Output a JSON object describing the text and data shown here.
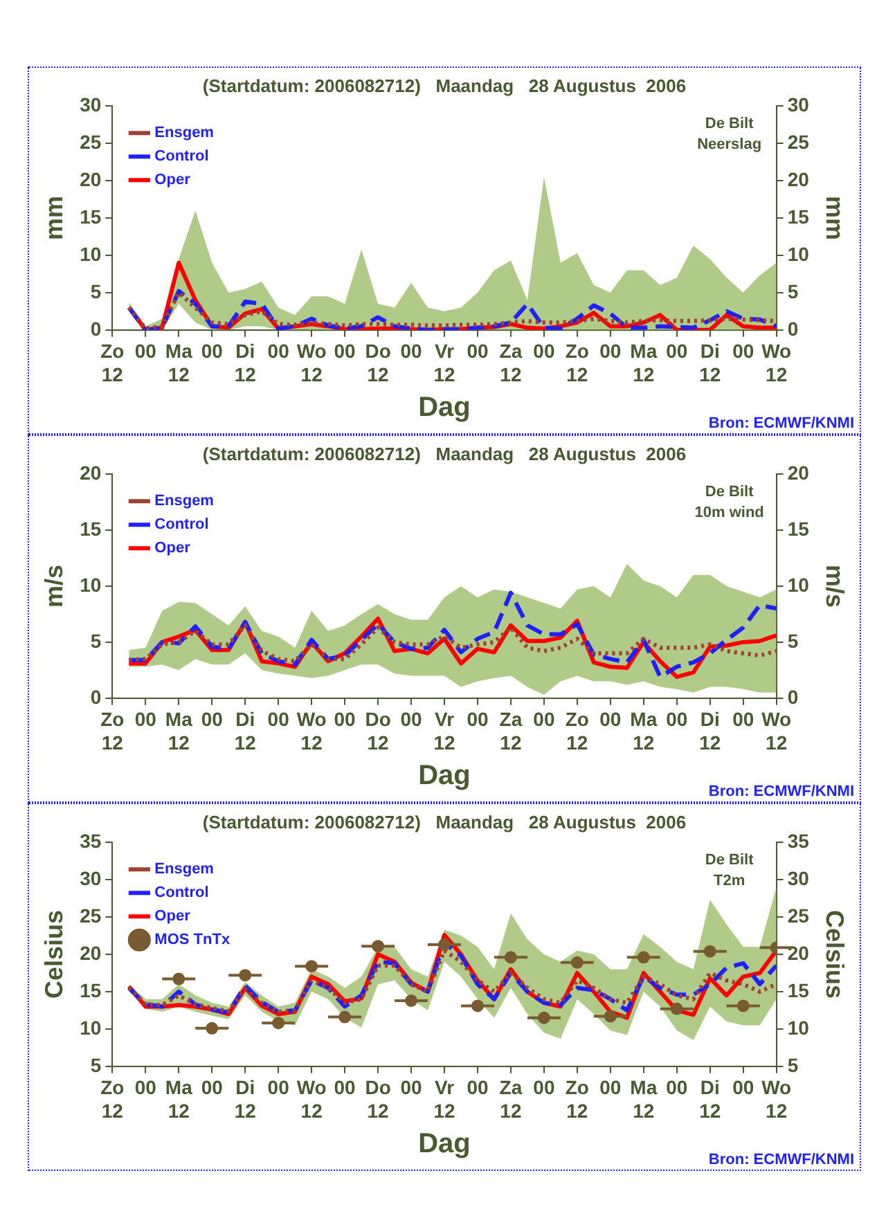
{
  "chart_data": [
    {
      "type": "line",
      "title": "(Startdatum: 2006082712)   Maandag   28 Augustus  2006",
      "xlabel": "Dag",
      "ylabel": "mm",
      "y2label": "mm",
      "x": [
        "2006-08-27T18:00",
        "2006-08-28T00:00",
        "2006-08-28T06:00",
        "2006-08-28T12:00",
        "2006-08-28T18:00",
        "2006-08-29T00:00",
        "2006-08-29T06:00",
        "2006-08-29T12:00",
        "2006-08-29T18:00",
        "2006-08-30T00:00",
        "2006-08-30T06:00",
        "2006-08-30T12:00",
        "2006-08-30T18:00",
        "2006-08-31T00:00",
        "2006-08-31T06:00",
        "2006-08-31T12:00",
        "2006-08-31T18:00",
        "2006-09-01T00:00",
        "2006-09-01T06:00",
        "2006-09-01T12:00",
        "2006-09-01T18:00",
        "2006-09-02T00:00",
        "2006-09-02T06:00",
        "2006-09-02T12:00",
        "2006-09-02T18:00",
        "2006-09-03T00:00",
        "2006-09-03T06:00",
        "2006-09-03T12:00",
        "2006-09-03T18:00",
        "2006-09-04T00:00",
        "2006-09-04T06:00",
        "2006-09-04T12:00",
        "2006-09-04T18:00",
        "2006-09-05T00:00",
        "2006-09-05T06:00",
        "2006-09-05T12:00",
        "2006-09-05T18:00",
        "2006-09-06T00:00",
        "2006-09-06T06:00",
        "2006-09-06T12:00"
      ],
      "xlim": [
        "2006-08-27T12:00",
        "2006-09-06T12:00"
      ],
      "xticks": [
        {
          "value": "2006-08-27T12:00",
          "label": "Zo\n12"
        },
        {
          "value": "2006-08-28T00:00",
          "label": "00"
        },
        {
          "value": "2006-08-28T12:00",
          "label": "Ma\n12"
        },
        {
          "value": "2006-08-29T00:00",
          "label": "00"
        },
        {
          "value": "2006-08-29T12:00",
          "label": "Di\n12"
        },
        {
          "value": "2006-08-30T00:00",
          "label": "00"
        },
        {
          "value": "2006-08-30T12:00",
          "label": "Wo\n12"
        },
        {
          "value": "2006-08-31T00:00",
          "label": "00"
        },
        {
          "value": "2006-08-31T12:00",
          "label": "Do\n12"
        },
        {
          "value": "2006-09-01T00:00",
          "label": "00"
        },
        {
          "value": "2006-09-01T12:00",
          "label": "Vr\n12"
        },
        {
          "value": "2006-09-02T00:00",
          "label": "00"
        },
        {
          "value": "2006-09-02T12:00",
          "label": "Za\n12"
        },
        {
          "value": "2006-09-03T00:00",
          "label": "00"
        },
        {
          "value": "2006-09-03T12:00",
          "label": "Zo\n12"
        },
        {
          "value": "2006-09-04T00:00",
          "label": "00"
        },
        {
          "value": "2006-09-04T12:00",
          "label": "Ma\n12"
        },
        {
          "value": "2006-09-05T00:00",
          "label": "00"
        },
        {
          "value": "2006-09-05T12:00",
          "label": "Di\n12"
        },
        {
          "value": "2006-09-06T00:00",
          "label": "00"
        },
        {
          "value": "2006-09-06T12:00",
          "label": "Wo\n12"
        }
      ],
      "ylim": [
        0,
        30
      ],
      "yticks": [
        0,
        5,
        10,
        15,
        20,
        25,
        30
      ],
      "y2lim": [
        0,
        30
      ],
      "y2ticks": [
        0,
        5,
        10,
        15,
        20,
        25,
        30
      ],
      "legend": "top left",
      "annotations": [
        "De Bilt",
        "Neerslag",
        "Bron: ECMWF/KNMI"
      ],
      "series": [
        {
          "color": "#9cbe6a",
          "values": [
            null,
            null,
            null,
            null,
            null,
            null,
            null,
            null,
            null,
            null,
            null,
            null,
            null,
            null,
            null,
            null,
            null,
            null,
            null,
            null,
            null,
            null,
            null,
            null,
            null,
            null,
            null,
            null,
            null,
            null,
            null,
            null,
            null,
            null,
            null,
            null,
            null,
            null,
            null,
            null
          ],
          "lower": [
            2.5,
            0,
            0,
            3.5,
            1,
            0,
            0,
            0.5,
            0.5,
            0,
            0,
            0,
            0,
            0,
            0,
            0,
            0,
            0,
            0,
            0,
            0,
            0,
            0,
            0,
            0,
            0,
            0,
            0,
            0,
            0,
            0,
            0,
            0,
            0,
            0,
            0,
            0,
            0,
            0,
            0
          ],
          "upper": [
            3.7,
            0.5,
            1.5,
            9.5,
            16,
            9,
            5,
            5.5,
            6.5,
            3,
            2,
            4.5,
            4.5,
            3.5,
            10.8,
            3.5,
            3,
            6.3,
            3,
            2.5,
            3,
            5,
            8,
            9.3,
            4,
            20.5,
            9,
            10.3,
            6,
            5,
            8,
            8,
            6,
            7,
            11.3,
            9.5,
            7,
            5,
            7.3,
            9
          ]
        },
        {
          "name": "Ensgem",
          "color": "#a04030",
          "line_style": "dotted",
          "values": [
            3,
            0.2,
            0.5,
            5,
            3,
            1,
            0.8,
            2,
            2.5,
            0.8,
            0.7,
            1,
            0.8,
            0.6,
            0.8,
            0.8,
            0.7,
            0.7,
            0.6,
            0.6,
            0.7,
            0.7,
            0.8,
            1,
            1.2,
            1,
            1,
            1.2,
            1.5,
            1.2,
            1,
            1.2,
            1.3,
            1.2,
            1.2,
            1.3,
            1.5,
            1.4,
            1.3,
            1.2
          ]
        },
        {
          "name": "Control",
          "color": "#2020ff",
          "line_style": "dashed",
          "values": [
            3,
            0,
            0.3,
            5.2,
            3.5,
            0.5,
            0.5,
            3.8,
            3.5,
            0.2,
            0.5,
            1.5,
            0.6,
            0.2,
            0.5,
            1.7,
            0.5,
            0.2,
            0,
            0.1,
            0.1,
            0.3,
            0.5,
            1,
            3.5,
            0.3,
            0.2,
            1.5,
            3.3,
            2.2,
            0.3,
            0.3,
            0.5,
            0.4,
            0.3,
            1.3,
            2.5,
            1.5,
            1.4,
            0.5
          ]
        },
        {
          "name": "Oper",
          "color": "#ff0000",
          "line_style": "solid",
          "values": [
            3,
            0,
            0.3,
            9,
            4,
            0.5,
            0.3,
            2.2,
            2.8,
            0.2,
            0.5,
            0.8,
            0.5,
            0.1,
            0.1,
            0.2,
            0.2,
            0.1,
            0,
            0.1,
            0.1,
            0.3,
            0.4,
            0.8,
            0.3,
            0.2,
            0.5,
            1,
            2.3,
            0.5,
            0.5,
            1,
            2,
            0,
            0,
            0,
            2,
            0.5,
            0.3,
            0.3
          ]
        }
      ]
    },
    {
      "type": "line",
      "title": "(Startdatum: 2006082712)   Maandag   28 Augustus  2006",
      "xlabel": "Dag",
      "ylabel": "m/s",
      "y2label": "m/s",
      "x": [
        "2006-08-27T18:00",
        "2006-08-28T00:00",
        "2006-08-28T06:00",
        "2006-08-28T12:00",
        "2006-08-28T18:00",
        "2006-08-29T00:00",
        "2006-08-29T06:00",
        "2006-08-29T12:00",
        "2006-08-29T18:00",
        "2006-08-30T00:00",
        "2006-08-30T06:00",
        "2006-08-30T12:00",
        "2006-08-30T18:00",
        "2006-08-31T00:00",
        "2006-08-31T06:00",
        "2006-08-31T12:00",
        "2006-08-31T18:00",
        "2006-09-01T00:00",
        "2006-09-01T06:00",
        "2006-09-01T12:00",
        "2006-09-01T18:00",
        "2006-09-02T00:00",
        "2006-09-02T06:00",
        "2006-09-02T12:00",
        "2006-09-02T18:00",
        "2006-09-03T00:00",
        "2006-09-03T06:00",
        "2006-09-03T12:00",
        "2006-09-03T18:00",
        "2006-09-04T00:00",
        "2006-09-04T06:00",
        "2006-09-04T12:00",
        "2006-09-04T18:00",
        "2006-09-05T00:00",
        "2006-09-05T06:00",
        "2006-09-05T12:00",
        "2006-09-05T18:00",
        "2006-09-06T00:00",
        "2006-09-06T06:00",
        "2006-09-06T12:00"
      ],
      "xlim": [
        "2006-08-27T12:00",
        "2006-09-06T12:00"
      ],
      "xticks": [
        {
          "value": "2006-08-27T12:00",
          "label": "Zo\n12"
        },
        {
          "value": "2006-08-28T00:00",
          "label": "00"
        },
        {
          "value": "2006-08-28T12:00",
          "label": "Ma\n12"
        },
        {
          "value": "2006-08-29T00:00",
          "label": "00"
        },
        {
          "value": "2006-08-29T12:00",
          "label": "Di\n12"
        },
        {
          "value": "2006-08-30T00:00",
          "label": "00"
        },
        {
          "value": "2006-08-30T12:00",
          "label": "Wo\n12"
        },
        {
          "value": "2006-08-31T00:00",
          "label": "00"
        },
        {
          "value": "2006-08-31T12:00",
          "label": "Do\n12"
        },
        {
          "value": "2006-09-01T00:00",
          "label": "00"
        },
        {
          "value": "2006-09-01T12:00",
          "label": "Vr\n12"
        },
        {
          "value": "2006-09-02T00:00",
          "label": "00"
        },
        {
          "value": "2006-09-02T12:00",
          "label": "Za\n12"
        },
        {
          "value": "2006-09-03T00:00",
          "label": "00"
        },
        {
          "value": "2006-09-03T12:00",
          "label": "Zo\n12"
        },
        {
          "value": "2006-09-04T00:00",
          "label": "00"
        },
        {
          "value": "2006-09-04T12:00",
          "label": "Ma\n12"
        },
        {
          "value": "2006-09-05T00:00",
          "label": "00"
        },
        {
          "value": "2006-09-05T12:00",
          "label": "Di\n12"
        },
        {
          "value": "2006-09-06T00:00",
          "label": "00"
        },
        {
          "value": "2006-09-06T12:00",
          "label": "Wo\n12"
        }
      ],
      "ylim": [
        0,
        20
      ],
      "yticks": [
        0,
        5,
        10,
        15,
        20
      ],
      "y2lim": [
        0,
        20
      ],
      "y2ticks": [
        0,
        5,
        10,
        15,
        20
      ],
      "legend": "top left",
      "annotations": [
        "De Bilt",
        "10m wind",
        "Bron: ECMWF/KNMI"
      ],
      "series": [
        {
          "color": "#9cbe6a",
          "values": [
            null,
            null,
            null,
            null,
            null,
            null,
            null,
            null,
            null,
            null,
            null,
            null,
            null,
            null,
            null,
            null,
            null,
            null,
            null,
            null,
            null,
            null,
            null,
            null,
            null,
            null,
            null,
            null,
            null,
            null,
            null,
            null,
            null,
            null,
            null,
            null,
            null,
            null,
            null,
            null
          ],
          "lower": [
            2.8,
            2.8,
            3,
            2.5,
            3.5,
            3,
            3,
            4,
            2.5,
            2.2,
            2,
            1.8,
            2,
            2.5,
            3,
            3,
            2.2,
            2,
            2,
            2,
            1,
            1.5,
            1.8,
            2,
            1,
            0.3,
            1.5,
            2,
            1.5,
            1.5,
            1.2,
            1.5,
            1,
            0.8,
            0.5,
            1,
            1,
            0.8,
            0.5,
            0.5
          ],
          "upper": [
            4.3,
            4.5,
            7.8,
            8.6,
            8.5,
            7.5,
            6.5,
            8.2,
            6,
            5.5,
            4.5,
            7.8,
            6,
            6.5,
            7.5,
            8.4,
            7.5,
            7,
            7,
            9,
            10,
            9,
            9.7,
            9.5,
            9,
            8.5,
            8,
            9.7,
            10,
            9,
            12,
            10.5,
            10,
            9,
            11,
            11,
            10,
            9.5,
            9,
            9.7
          ]
        },
        {
          "name": "Ensgem",
          "color": "#a04030",
          "line_style": "dotted",
          "values": [
            3.4,
            3.5,
            4.8,
            5,
            6,
            4.8,
            4.8,
            6.5,
            4.2,
            3.5,
            3.3,
            4.8,
            3.5,
            3.5,
            4.8,
            6.3,
            5,
            4.8,
            4.8,
            5.5,
            4.5,
            4.8,
            5,
            6.3,
            4.5,
            4.2,
            4.5,
            5.3,
            4,
            4,
            4,
            5.3,
            4.5,
            4.5,
            4.5,
            4.8,
            4.2,
            4,
            3.8,
            4.2
          ]
        },
        {
          "name": "Control",
          "color": "#2020ff",
          "line_style": "dashed",
          "values": [
            3.4,
            3.4,
            5,
            4.9,
            6.4,
            4.6,
            4.4,
            6.8,
            4,
            3.3,
            3,
            5.2,
            3.5,
            3.8,
            5.2,
            6.6,
            5,
            4.4,
            4.5,
            6.1,
            4.1,
            5.3,
            5.9,
            9.4,
            6.5,
            5.7,
            5.7,
            6.6,
            3.9,
            3.5,
            3.2,
            5.2,
            1.9,
            2.8,
            3.2,
            4,
            5.2,
            6.3,
            8.3,
            8
          ]
        },
        {
          "name": "Oper",
          "color": "#ff0000",
          "line_style": "solid",
          "values": [
            3.1,
            3.1,
            5,
            5.5,
            6.1,
            4.3,
            4.3,
            6.8,
            3.3,
            3.1,
            2.8,
            5,
            3.3,
            4,
            5.5,
            7.1,
            4.2,
            4.4,
            4,
            5.3,
            3.1,
            4.4,
            4.1,
            6.5,
            5.1,
            5.1,
            5.4,
            6.9,
            3.2,
            2.8,
            2.7,
            5,
            3.3,
            1.9,
            2.3,
            4.6,
            4.7,
            5,
            5.1,
            5.6
          ]
        }
      ]
    },
    {
      "type": "line",
      "title": "(Startdatum: 2006082712)   Maandag   28 Augustus  2006",
      "xlabel": "Dag",
      "ylabel": "Celsius",
      "y2label": "Celsius",
      "x": [
        "2006-08-27T18:00",
        "2006-08-28T00:00",
        "2006-08-28T06:00",
        "2006-08-28T12:00",
        "2006-08-28T18:00",
        "2006-08-29T00:00",
        "2006-08-29T06:00",
        "2006-08-29T12:00",
        "2006-08-29T18:00",
        "2006-08-30T00:00",
        "2006-08-30T06:00",
        "2006-08-30T12:00",
        "2006-08-30T18:00",
        "2006-08-31T00:00",
        "2006-08-31T06:00",
        "2006-08-31T12:00",
        "2006-08-31T18:00",
        "2006-09-01T00:00",
        "2006-09-01T06:00",
        "2006-09-01T12:00",
        "2006-09-01T18:00",
        "2006-09-02T00:00",
        "2006-09-02T06:00",
        "2006-09-02T12:00",
        "2006-09-02T18:00",
        "2006-09-03T00:00",
        "2006-09-03T06:00",
        "2006-09-03T12:00",
        "2006-09-03T18:00",
        "2006-09-04T00:00",
        "2006-09-04T06:00",
        "2006-09-04T12:00",
        "2006-09-04T18:00",
        "2006-09-05T00:00",
        "2006-09-05T06:00",
        "2006-09-05T12:00",
        "2006-09-05T18:00",
        "2006-09-06T00:00",
        "2006-09-06T06:00",
        "2006-09-06T12:00"
      ],
      "xlim": [
        "2006-08-27T12:00",
        "2006-09-06T12:00"
      ],
      "xticks": [
        {
          "value": "2006-08-27T12:00",
          "label": "Zo\n12"
        },
        {
          "value": "2006-08-28T00:00",
          "label": "00"
        },
        {
          "value": "2006-08-28T12:00",
          "label": "Ma\n12"
        },
        {
          "value": "2006-08-29T00:00",
          "label": "00"
        },
        {
          "value": "2006-08-29T12:00",
          "label": "Di\n12"
        },
        {
          "value": "2006-08-30T00:00",
          "label": "00"
        },
        {
          "value": "2006-08-30T12:00",
          "label": "Wo\n12"
        },
        {
          "value": "2006-08-31T00:00",
          "label": "00"
        },
        {
          "value": "2006-08-31T12:00",
          "label": "Do\n12"
        },
        {
          "value": "2006-09-01T00:00",
          "label": "00"
        },
        {
          "value": "2006-09-01T12:00",
          "label": "Vr\n12"
        },
        {
          "value": "2006-09-02T00:00",
          "label": "00"
        },
        {
          "value": "2006-09-02T12:00",
          "label": "Za\n12"
        },
        {
          "value": "2006-09-03T00:00",
          "label": "00"
        },
        {
          "value": "2006-09-03T12:00",
          "label": "Zo\n12"
        },
        {
          "value": "2006-09-04T00:00",
          "label": "00"
        },
        {
          "value": "2006-09-04T12:00",
          "label": "Ma\n12"
        },
        {
          "value": "2006-09-05T00:00",
          "label": "00"
        },
        {
          "value": "2006-09-05T12:00",
          "label": "Di\n12"
        },
        {
          "value": "2006-09-06T00:00",
          "label": "00"
        },
        {
          "value": "2006-09-06T12:00",
          "label": "Wo\n12"
        }
      ],
      "ylim": [
        5,
        35
      ],
      "yticks": [
        5,
        10,
        15,
        20,
        25,
        30,
        35
      ],
      "y2lim": [
        5,
        35
      ],
      "y2ticks": [
        5,
        10,
        15,
        20,
        25,
        30,
        35
      ],
      "legend": "top left",
      "annotations": [
        "De Bilt",
        "T2m",
        "Bron: ECMWF/KNMI"
      ],
      "series": [
        {
          "color": "#9cbe6a",
          "values": [
            null,
            null,
            null,
            null,
            null,
            null,
            null,
            null,
            null,
            null,
            null,
            null,
            null,
            null,
            null,
            null,
            null,
            null,
            null,
            null,
            null,
            null,
            null,
            null,
            null,
            null,
            null,
            null,
            null,
            null,
            null,
            null,
            null,
            null,
            null,
            null,
            null,
            null,
            null,
            null
          ],
          "lower": [
            15,
            12.7,
            12.3,
            13,
            12.3,
            11.8,
            11.3,
            14.5,
            12.3,
            11,
            10.5,
            15,
            14,
            11.5,
            10.2,
            16,
            16.5,
            14,
            12.5,
            19,
            17,
            14,
            11.5,
            15.5,
            12,
            9.5,
            8.7,
            14,
            12,
            9.8,
            9.2,
            15,
            13,
            9.8,
            8.5,
            13,
            11,
            10.5,
            10.5,
            14
          ],
          "upper": [
            16,
            14,
            14,
            16,
            14.5,
            13.5,
            13,
            16.3,
            14.5,
            13,
            13.5,
            18,
            17,
            15.5,
            17,
            21,
            21,
            18,
            17,
            23.3,
            22.5,
            21,
            18,
            25.5,
            22,
            20,
            19,
            20.5,
            20,
            18,
            18,
            22.7,
            21,
            19,
            18,
            27.3,
            24,
            21,
            21,
            29
          ]
        },
        {
          "name": "Ensgem",
          "color": "#a04030",
          "line_style": "dotted",
          "values": [
            15.5,
            13.3,
            13.2,
            14.5,
            13.3,
            12.8,
            12.4,
            15.3,
            13.5,
            12.3,
            12.5,
            16.5,
            15.5,
            13.5,
            14,
            18.5,
            18.5,
            16,
            15,
            20.5,
            19,
            16.5,
            15,
            17.5,
            15.5,
            14,
            13.5,
            16.5,
            15.5,
            14,
            13.5,
            17,
            16,
            14.5,
            14,
            17.5,
            16.5,
            16,
            15,
            16
          ]
        },
        {
          "name": "Control",
          "color": "#2020ff",
          "line_style": "dashed",
          "values": [
            15.5,
            13.3,
            13,
            15,
            13.3,
            12.6,
            12.2,
            15.8,
            13.6,
            12.3,
            12.5,
            16.5,
            15.5,
            13,
            14.5,
            19,
            18.8,
            16,
            15,
            21.5,
            19.8,
            16,
            14,
            17.5,
            15,
            13.5,
            13.2,
            15.5,
            15.2,
            14,
            12.5,
            17,
            15.5,
            14.6,
            14.6,
            16,
            18.2,
            18.8,
            16,
            18.5
          ]
        },
        {
          "name": "Oper",
          "color": "#ff0000",
          "line_style": "solid",
          "values": [
            15.7,
            13,
            13,
            13.2,
            13,
            12.6,
            12,
            15.5,
            13.1,
            12,
            12.3,
            17,
            16,
            13.7,
            14.1,
            20,
            19,
            16.2,
            15,
            22.6,
            20,
            16.5,
            14,
            18,
            15,
            13.5,
            13,
            17.5,
            15,
            12.3,
            11.5,
            17.5,
            15,
            12.5,
            11.9,
            16.8,
            14.5,
            17,
            17.5,
            20.5
          ]
        },
        {
          "name": "MOS TnTx",
          "type": "scatter",
          "marker": "circle",
          "color": "#7a5a30",
          "x": [
            "2006-08-28T12:00",
            "2006-08-29T00:00",
            "2006-08-29T12:00",
            "2006-08-30T00:00",
            "2006-08-30T12:00",
            "2006-08-31T00:00",
            "2006-08-31T12:00",
            "2006-09-01T00:00",
            "2006-09-01T12:00",
            "2006-09-02T00:00",
            "2006-09-02T12:00",
            "2006-09-03T00:00",
            "2006-09-03T12:00",
            "2006-09-04T00:00",
            "2006-09-04T12:00",
            "2006-09-05T00:00",
            "2006-09-05T12:00",
            "2006-09-06T00:00",
            "2006-09-06T12:00"
          ],
          "values": [
            16.7,
            10.1,
            17.2,
            10.8,
            18.4,
            11.6,
            21.1,
            13.8,
            21.3,
            13.1,
            19.6,
            11.5,
            18.9,
            11.7,
            19.6,
            12.7,
            20.4,
            13.1,
            20.9
          ],
          "xerrors": [
            0.25,
            0.25,
            0.25,
            0.25,
            0.25,
            0.25,
            0.25,
            0.25,
            0.25,
            0.25,
            0.25,
            0.25,
            0.25,
            0.25,
            0.25,
            0.25,
            0.25,
            0.25,
            0.25
          ]
        }
      ]
    }
  ]
}
